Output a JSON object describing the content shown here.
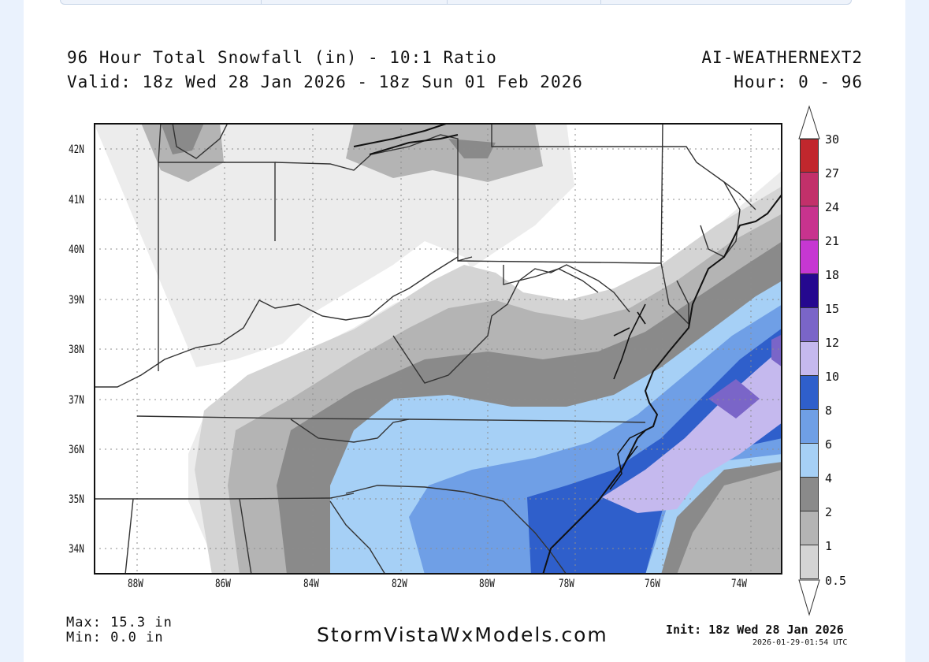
{
  "header": {
    "title": "96 Hour Total Snowfall (in) - 10:1 Ratio",
    "valid": "Valid: 18z Wed 28 Jan 2026 - 18z Sun 01 Feb 2026",
    "model": "AI-WEATHERNEXT2",
    "hours": "Hour: 0 - 96"
  },
  "axes": {
    "lat_labels": [
      "42N",
      "41N",
      "40N",
      "39N",
      "38N",
      "37N",
      "36N",
      "35N",
      "34N"
    ],
    "lon_labels": [
      "88W",
      "86W",
      "84W",
      "82W",
      "80W",
      "78W",
      "76W",
      "74W"
    ]
  },
  "colorbar": {
    "levels": [
      "30",
      "27",
      "24",
      "21",
      "18",
      "15",
      "12",
      "10",
      "8",
      "6",
      "4",
      "2",
      "1",
      "0.5"
    ],
    "colors": [
      "#c1272d",
      "#c2306a",
      "#c8338e",
      "#c637d2",
      "#25088f",
      "#7a65c8",
      "#c5b9ee",
      "#2f5fcb",
      "#6f9fe6",
      "#a6d0f6",
      "#8a8a8a",
      "#b4b4b4",
      "#d4d4d4",
      "#ececec"
    ]
  },
  "footer": {
    "max": "Max: 15.3 in",
    "min": "Min: 0.0 in",
    "brand": "StormVistaWxModels.com",
    "init": "Init: 18z Wed 28 Jan 2026",
    "timestamp": "2026-01-29-01:54 UTC"
  }
}
